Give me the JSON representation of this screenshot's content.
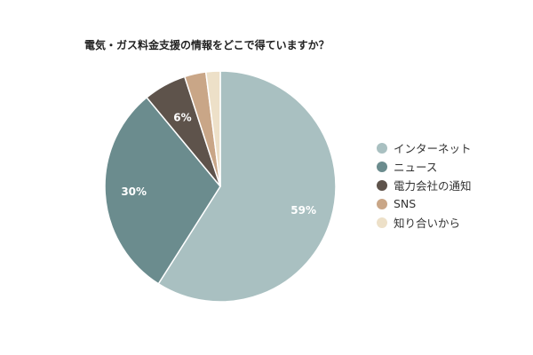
{
  "chart_data": {
    "type": "pie",
    "title": "電気・ガス料金支援の情報をどこで得ていますか？",
    "legend_position": "right",
    "slices": [
      {
        "label": "インターネット",
        "value": 59,
        "display": "59%",
        "color": "#a9c0c1"
      },
      {
        "label": "ニュース",
        "value": 30,
        "display": "30%",
        "color": "#6b8c8e"
      },
      {
        "label": "電力会社の通知",
        "value": 6,
        "display": "6%",
        "color": "#5e534b"
      },
      {
        "label": "SNS",
        "value": 3,
        "display": "",
        "color": "#c9a687"
      },
      {
        "label": "知り合いから",
        "value": 2,
        "display": "",
        "color": "#ede0c8"
      }
    ]
  }
}
